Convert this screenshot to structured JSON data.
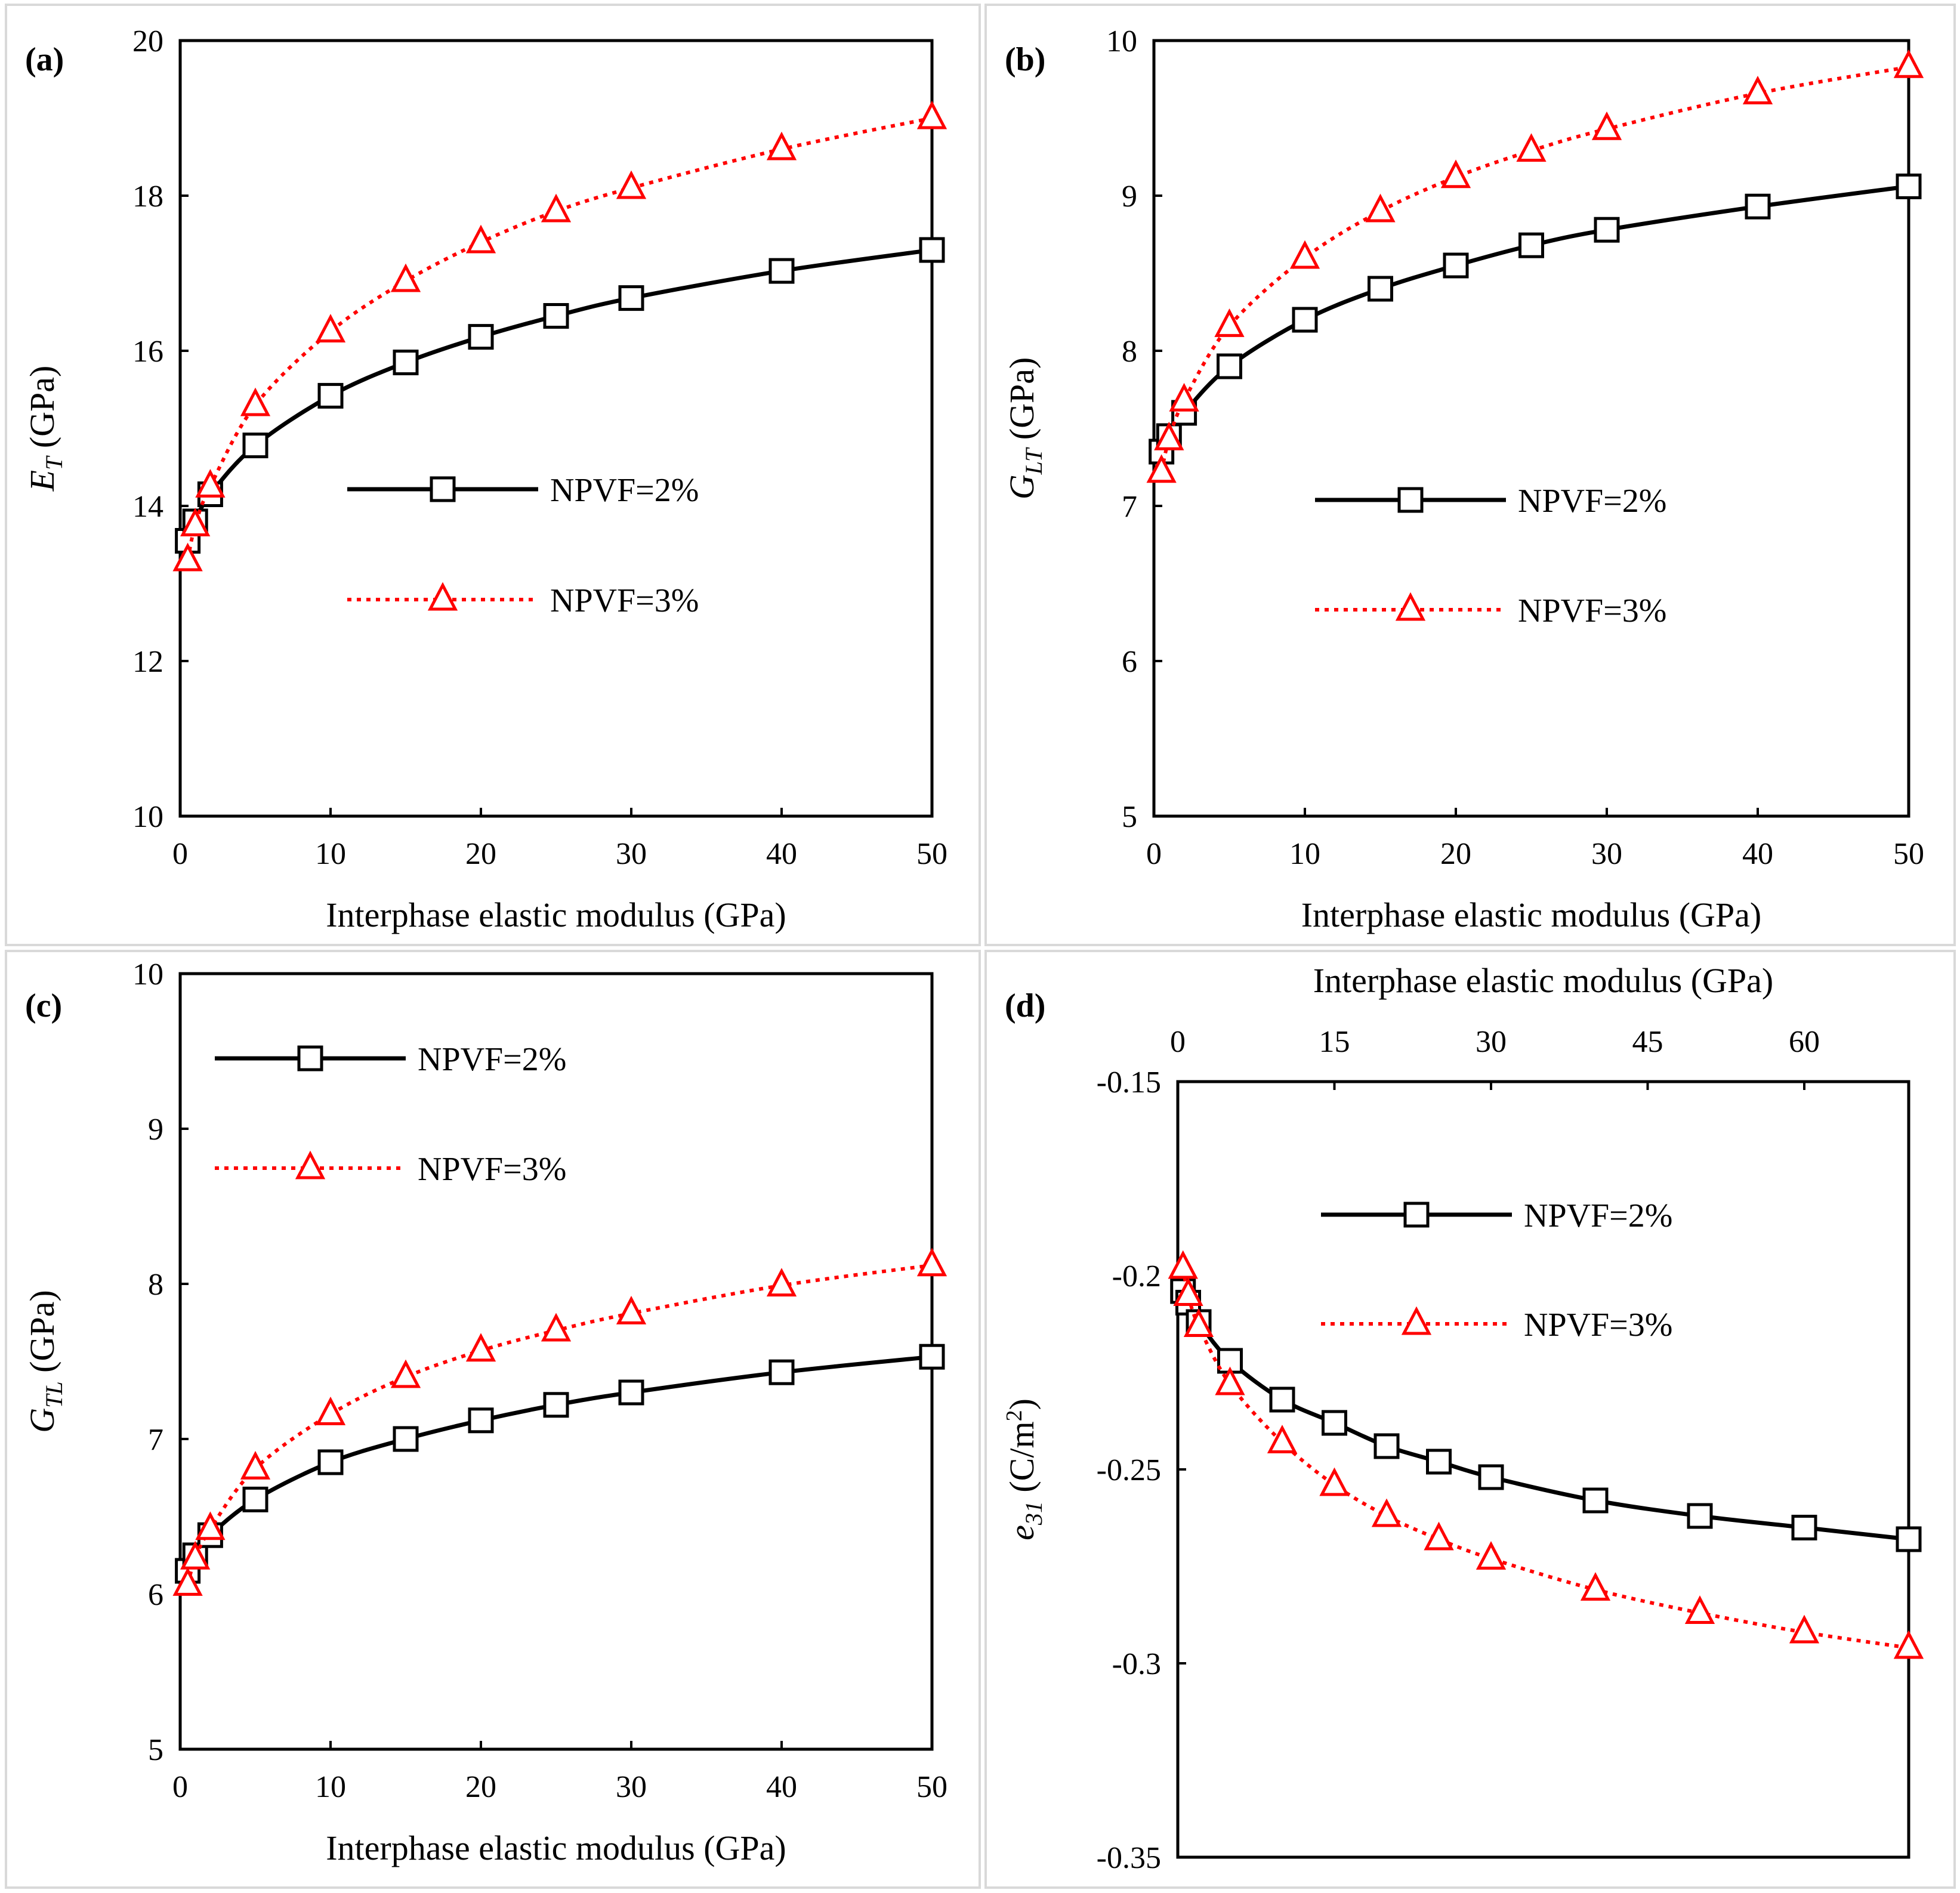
{
  "series_styles": {
    "npvf2": {
      "color": "#000000",
      "marker": "square",
      "dash": "solid"
    },
    "npvf3": {
      "color": "#ff0000",
      "marker": "triangle",
      "dash": "dotted"
    }
  },
  "chart_data": [
    {
      "type": "line",
      "panel_label": "(a)",
      "xlabel": "Interphase elastic modulus (GPa)",
      "ylabel_main": "E",
      "ylabel_sub": "T",
      "ylabel_unit": " (GPa)",
      "x_axis_position": "bottom",
      "xlim": [
        0,
        50
      ],
      "ylim": [
        10,
        20
      ],
      "xticks": [
        "0",
        "10",
        "20",
        "30",
        "40",
        "50"
      ],
      "yticks": [
        "10",
        "12",
        "14",
        "16",
        "18",
        "20"
      ],
      "grid": false,
      "legend_position": "center-right",
      "series": [
        {
          "name": "NPVF=2%",
          "x": [
            0.5,
            1,
            2,
            5,
            10,
            15,
            20,
            25,
            30,
            40,
            50
          ],
          "values": [
            13.55,
            13.8,
            14.15,
            14.78,
            15.42,
            15.85,
            16.18,
            16.45,
            16.68,
            17.03,
            17.3
          ]
        },
        {
          "name": "NPVF=3%",
          "x": [
            0.5,
            1,
            2,
            5,
            10,
            15,
            20,
            25,
            30,
            40,
            50
          ],
          "values": [
            13.3,
            13.75,
            14.25,
            15.3,
            16.25,
            16.9,
            17.4,
            17.8,
            18.1,
            18.6,
            19.0
          ]
        }
      ]
    },
    {
      "type": "line",
      "panel_label": "(b)",
      "xlabel": "Interphase elastic modulus (GPa)",
      "ylabel_main": "G",
      "ylabel_sub": "LT",
      "ylabel_unit": " (GPa)",
      "x_axis_position": "bottom",
      "xlim": [
        0,
        50
      ],
      "ylim": [
        5,
        10
      ],
      "xticks": [
        "0",
        "10",
        "20",
        "30",
        "40",
        "50"
      ],
      "yticks": [
        "5",
        "6",
        "7",
        "8",
        "9",
        "10"
      ],
      "grid": false,
      "legend_position": "center-right",
      "series": [
        {
          "name": "NPVF=2%",
          "x": [
            0.5,
            1,
            2,
            5,
            10,
            15,
            20,
            25,
            30,
            40,
            50
          ],
          "values": [
            7.35,
            7.45,
            7.6,
            7.9,
            8.2,
            8.4,
            8.55,
            8.68,
            8.78,
            8.93,
            9.06
          ]
        },
        {
          "name": "NPVF=3%",
          "x": [
            0.5,
            1,
            2,
            5,
            10,
            15,
            20,
            25,
            30,
            40,
            50
          ],
          "values": [
            7.22,
            7.43,
            7.68,
            8.16,
            8.6,
            8.9,
            9.12,
            9.29,
            9.43,
            9.66,
            9.83
          ]
        }
      ]
    },
    {
      "type": "line",
      "panel_label": "(c)",
      "xlabel": "Interphase elastic modulus (GPa)",
      "ylabel_main": "G",
      "ylabel_sub": "TL",
      "ylabel_unit": " (GPa)",
      "x_axis_position": "bottom",
      "xlim": [
        0,
        50
      ],
      "ylim": [
        5,
        10
      ],
      "xticks": [
        "0",
        "10",
        "20",
        "30",
        "40",
        "50"
      ],
      "yticks": [
        "5",
        "6",
        "7",
        "8",
        "9",
        "10"
      ],
      "grid": false,
      "legend_position": "top-left",
      "series": [
        {
          "name": "NPVF=2%",
          "x": [
            0.5,
            1,
            2,
            5,
            10,
            15,
            20,
            25,
            30,
            40,
            50
          ],
          "values": [
            6.15,
            6.25,
            6.38,
            6.61,
            6.85,
            7.0,
            7.12,
            7.22,
            7.3,
            7.43,
            7.53
          ]
        },
        {
          "name": "NPVF=3%",
          "x": [
            0.5,
            1,
            2,
            5,
            10,
            15,
            20,
            25,
            30,
            40,
            50
          ],
          "values": [
            6.06,
            6.23,
            6.42,
            6.81,
            7.16,
            7.4,
            7.57,
            7.7,
            7.81,
            7.99,
            8.12
          ]
        }
      ]
    },
    {
      "type": "line",
      "panel_label": "(d)",
      "xlabel": "Interphase elastic modulus (GPa)",
      "ylabel_main": "e",
      "ylabel_sub": "31",
      "ylabel_unit": " (C/m",
      "ylabel_sup": "2",
      "ylabel_close": ")",
      "x_axis_position": "top",
      "xlim": [
        0,
        70
      ],
      "ylim": [
        -0.35,
        -0.15
      ],
      "xticks": [
        "0",
        "15",
        "30",
        "45",
        "60"
      ],
      "yticks": [
        "-0.35",
        "-0.3",
        "-0.25",
        "-0.2",
        "-0.15"
      ],
      "grid": false,
      "legend_position": "center-right",
      "series": [
        {
          "name": "NPVF=2%",
          "x": [
            0.5,
            1,
            2,
            5,
            10,
            15,
            20,
            25,
            30,
            40,
            50,
            60,
            70
          ],
          "values": [
            -0.204,
            -0.207,
            -0.212,
            -0.222,
            -0.232,
            -0.238,
            -0.244,
            -0.248,
            -0.252,
            -0.258,
            -0.262,
            -0.265,
            -0.268
          ]
        },
        {
          "name": "NPVF=3%",
          "x": [
            0.5,
            1,
            2,
            5,
            10,
            15,
            20,
            25,
            30,
            40,
            50,
            60,
            70
          ],
          "values": [
            -0.198,
            -0.205,
            -0.213,
            -0.228,
            -0.243,
            -0.254,
            -0.262,
            -0.268,
            -0.273,
            -0.281,
            -0.287,
            -0.292,
            -0.296
          ]
        }
      ]
    }
  ]
}
